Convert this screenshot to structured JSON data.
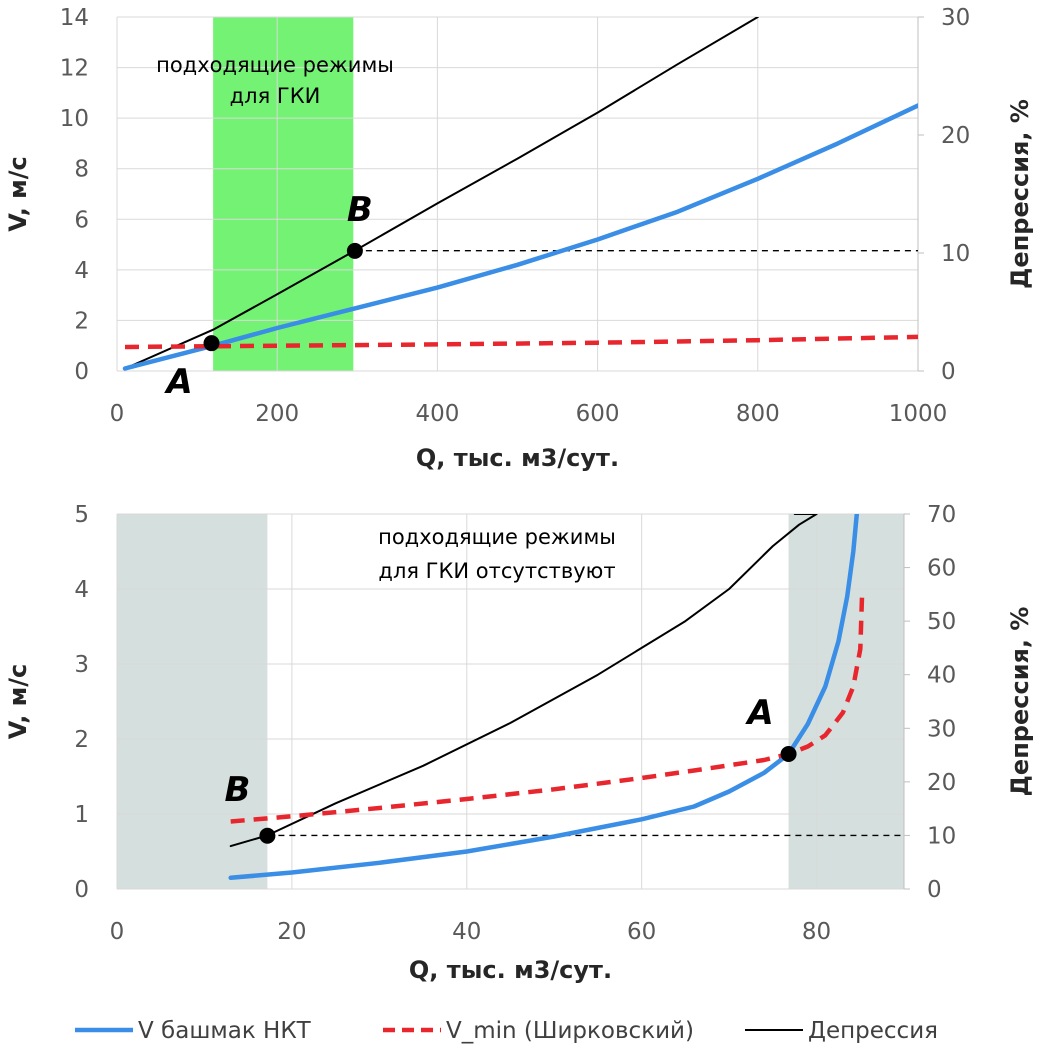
{
  "chart_data": [
    {
      "type": "line",
      "xlabel": "Q, тыс. м3/сут.",
      "ylabel": "V, м/с",
      "y2label": "Депрессия, %",
      "xlim": [
        0,
        1000
      ],
      "ylim": [
        0,
        14
      ],
      "y2lim": [
        0,
        30
      ],
      "x_ticks": [
        "0",
        "200",
        "400",
        "600",
        "800",
        "1000"
      ],
      "y_ticks": [
        "0",
        "2",
        "4",
        "6",
        "8",
        "10",
        "12",
        "14"
      ],
      "y2_ticks": [
        "0",
        "10",
        "20",
        "30"
      ],
      "grid": true,
      "region": {
        "x": [
          120,
          295
        ],
        "color": "#5cf05c",
        "label": "подходящие режимы\nдля ГКИ"
      },
      "series": [
        {
          "name": "V башмак НКТ",
          "axis": "left",
          "color": "#3a8ee6",
          "style": "solid",
          "x": [
            10,
            120,
            200,
            300,
            400,
            500,
            600,
            700,
            800,
            900,
            1000
          ],
          "y": [
            0.1,
            1.0,
            1.7,
            2.5,
            3.3,
            4.2,
            5.2,
            6.3,
            7.6,
            9.0,
            10.5
          ]
        },
        {
          "name": "V_min (Ширковский)",
          "axis": "left",
          "color": "#e8262e",
          "style": "dashed",
          "x": [
            10,
            200,
            400,
            600,
            800,
            1000
          ],
          "y": [
            0.95,
            1.0,
            1.05,
            1.12,
            1.22,
            1.35
          ]
        },
        {
          "name": "Депрессия",
          "axis": "right",
          "color": "#000000",
          "style": "solid",
          "x": [
            10,
            120,
            200,
            297,
            400,
            500,
            600,
            700,
            800
          ],
          "y": [
            0.2,
            3.5,
            6.5,
            10.2,
            14.2,
            18.0,
            21.9,
            26.0,
            30.0
          ]
        }
      ],
      "points": [
        {
          "label": "A",
          "x": 118,
          "y": 1.1
        },
        {
          "label": "B",
          "x": 297,
          "y": 4.75
        }
      ],
      "reference_line": {
        "axis": "right",
        "y": 10.2,
        "x_from": 297,
        "x_to": 1000
      }
    },
    {
      "type": "line",
      "xlabel": "Q, тыс. м3/сут.",
      "ylabel": "V, м/с",
      "y2label": "Депрессия, %",
      "xlim": [
        0,
        90
      ],
      "ylim": [
        0,
        5
      ],
      "y2lim": [
        0,
        70
      ],
      "x_ticks": [
        "0",
        "20",
        "40",
        "60",
        "80"
      ],
      "y_ticks": [
        "0",
        "1",
        "2",
        "3",
        "4",
        "5"
      ],
      "y2_ticks": [
        "0",
        "10",
        "20",
        "30",
        "40",
        "50",
        "60",
        "70"
      ],
      "grid": true,
      "regions": [
        {
          "x": [
            0,
            17.2
          ],
          "color": "#d5dfdd"
        },
        {
          "x": [
            76.8,
            90
          ],
          "color": "#d5dfdd"
        }
      ],
      "region_label": "подходящие режимы\nдля ГКИ отсутствуют",
      "series": [
        {
          "name": "V башмак НКТ",
          "axis": "left",
          "color": "#3a8ee6",
          "style": "solid",
          "x": [
            13,
            20,
            30,
            40,
            50,
            60,
            66,
            70,
            74,
            76.8,
            79,
            81,
            82.5,
            83.5,
            84.2,
            84.6
          ],
          "y": [
            0.15,
            0.22,
            0.35,
            0.5,
            0.7,
            0.93,
            1.1,
            1.3,
            1.55,
            1.8,
            2.2,
            2.7,
            3.3,
            3.9,
            4.5,
            5.0
          ]
        },
        {
          "name": "V_min (Ширковский)",
          "axis": "left",
          "color": "#e8262e",
          "style": "dashed",
          "x": [
            13,
            20,
            30,
            40,
            50,
            60,
            66,
            70,
            74,
            76.8,
            79,
            81,
            83,
            84.2,
            85,
            85.2
          ],
          "y": [
            0.9,
            0.97,
            1.08,
            1.2,
            1.33,
            1.48,
            1.58,
            1.65,
            1.72,
            1.8,
            1.9,
            2.05,
            2.35,
            2.7,
            3.2,
            3.9
          ]
        },
        {
          "name": "Депрессия",
          "axis": "right",
          "color": "#000000",
          "style": "solid",
          "x": [
            13,
            17.2,
            25,
            35,
            45,
            55,
            65,
            70,
            75,
            78,
            80,
            77.5
          ],
          "y": [
            8,
            10,
            16,
            23,
            31,
            40,
            50,
            56,
            64,
            68,
            70,
            70
          ]
        }
      ],
      "points": [
        {
          "label": "A",
          "x": 76.8,
          "y": 1.8
        },
        {
          "label": "B",
          "x": 17.2,
          "y": 0.71
        }
      ],
      "reference_line": {
        "axis": "right",
        "y": 10,
        "x_from": 17.2,
        "x_to": 90
      }
    }
  ],
  "legend": [
    {
      "label": "V башмак НКТ",
      "color": "#3a8ee6",
      "style": "solid"
    },
    {
      "label": "V_min (Ширковский)",
      "color": "#e8262e",
      "style": "dashed"
    },
    {
      "label": "Депрессия",
      "color": "#000000",
      "style": "solid"
    }
  ]
}
